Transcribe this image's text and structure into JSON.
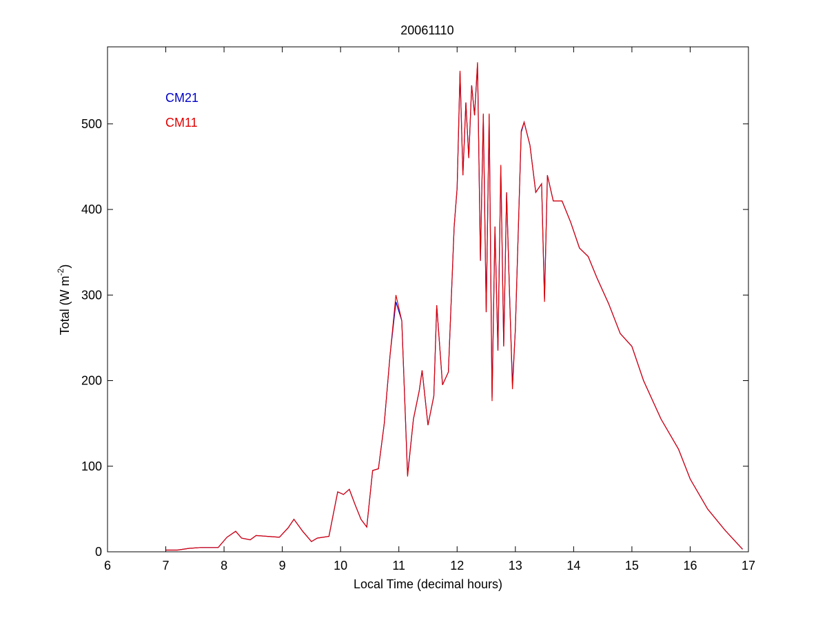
{
  "chart_data": {
    "type": "line",
    "title": "20061110",
    "xlabel": "Local Time (decimal hours)",
    "ylabel": {
      "main": "Total (W m",
      "sup": "-2",
      "close": ")"
    },
    "xlim": [
      6,
      17
    ],
    "ylim": [
      0,
      590
    ],
    "xticks": [
      6,
      7,
      8,
      9,
      10,
      11,
      12,
      13,
      14,
      15,
      16,
      17
    ],
    "yticks": [
      0,
      100,
      200,
      300,
      400,
      500
    ],
    "grid": false,
    "legend_placement": "top-left",
    "series": [
      {
        "name": "CM21",
        "color": "#0000c8",
        "points": [
          [
            7.0,
            2
          ],
          [
            7.2,
            2
          ],
          [
            7.4,
            4
          ],
          [
            7.6,
            5
          ],
          [
            7.9,
            5
          ],
          [
            8.05,
            17
          ],
          [
            8.2,
            24
          ],
          [
            8.3,
            16
          ],
          [
            8.45,
            14
          ],
          [
            8.55,
            19
          ],
          [
            8.75,
            18
          ],
          [
            8.95,
            17
          ],
          [
            9.1,
            28
          ],
          [
            9.2,
            38
          ],
          [
            9.35,
            24
          ],
          [
            9.5,
            12
          ],
          [
            9.6,
            16
          ],
          [
            9.8,
            18
          ],
          [
            9.95,
            70
          ],
          [
            10.05,
            67
          ],
          [
            10.15,
            73
          ],
          [
            10.25,
            55
          ],
          [
            10.35,
            38
          ],
          [
            10.45,
            29
          ],
          [
            10.55,
            95
          ],
          [
            10.65,
            97
          ],
          [
            10.75,
            150
          ],
          [
            10.85,
            230
          ],
          [
            10.95,
            292
          ],
          [
            11.05,
            270
          ],
          [
            11.15,
            90
          ],
          [
            11.25,
            155
          ],
          [
            11.35,
            188
          ],
          [
            11.4,
            212
          ],
          [
            11.5,
            148
          ],
          [
            11.6,
            182
          ],
          [
            11.65,
            288
          ],
          [
            11.75,
            195
          ],
          [
            11.85,
            210
          ],
          [
            11.95,
            380
          ],
          [
            12.0,
            425
          ],
          [
            12.05,
            560
          ],
          [
            12.1,
            440
          ],
          [
            12.15,
            525
          ],
          [
            12.2,
            460
          ],
          [
            12.25,
            545
          ],
          [
            12.3,
            510
          ],
          [
            12.35,
            570
          ],
          [
            12.4,
            340
          ],
          [
            12.45,
            510
          ],
          [
            12.5,
            280
          ],
          [
            12.55,
            510
          ],
          [
            12.6,
            180
          ],
          [
            12.65,
            380
          ],
          [
            12.7,
            235
          ],
          [
            12.75,
            450
          ],
          [
            12.8,
            240
          ],
          [
            12.85,
            420
          ],
          [
            12.9,
            300
          ],
          [
            12.95,
            195
          ],
          [
            13.0,
            260
          ],
          [
            13.1,
            490
          ],
          [
            13.15,
            502
          ],
          [
            13.25,
            475
          ],
          [
            13.35,
            420
          ],
          [
            13.45,
            430
          ],
          [
            13.5,
            295
          ],
          [
            13.55,
            440
          ],
          [
            13.65,
            410
          ],
          [
            13.8,
            410
          ],
          [
            13.95,
            385
          ],
          [
            14.1,
            355
          ],
          [
            14.25,
            345
          ],
          [
            14.4,
            320
          ],
          [
            14.6,
            290
          ],
          [
            14.8,
            255
          ],
          [
            15.0,
            240
          ],
          [
            15.2,
            200
          ],
          [
            15.5,
            155
          ],
          [
            15.8,
            120
          ],
          [
            16.0,
            85
          ],
          [
            16.3,
            50
          ],
          [
            16.6,
            25
          ],
          [
            16.9,
            3
          ]
        ]
      },
      {
        "name": "CM11",
        "color": "#e00000",
        "points": [
          [
            7.0,
            2
          ],
          [
            7.2,
            2
          ],
          [
            7.4,
            4
          ],
          [
            7.6,
            5
          ],
          [
            7.9,
            5
          ],
          [
            8.05,
            17
          ],
          [
            8.2,
            24
          ],
          [
            8.3,
            16
          ],
          [
            8.45,
            14
          ],
          [
            8.55,
            19
          ],
          [
            8.75,
            18
          ],
          [
            8.95,
            17
          ],
          [
            9.1,
            28
          ],
          [
            9.2,
            38
          ],
          [
            9.35,
            24
          ],
          [
            9.5,
            12
          ],
          [
            9.6,
            16
          ],
          [
            9.8,
            18
          ],
          [
            9.95,
            70
          ],
          [
            10.05,
            67
          ],
          [
            10.15,
            73
          ],
          [
            10.25,
            55
          ],
          [
            10.35,
            38
          ],
          [
            10.45,
            29
          ],
          [
            10.55,
            95
          ],
          [
            10.65,
            97
          ],
          [
            10.75,
            150
          ],
          [
            10.85,
            230
          ],
          [
            10.95,
            300
          ],
          [
            11.05,
            270
          ],
          [
            11.15,
            88
          ],
          [
            11.25,
            155
          ],
          [
            11.35,
            188
          ],
          [
            11.4,
            212
          ],
          [
            11.5,
            148
          ],
          [
            11.6,
            182
          ],
          [
            11.65,
            288
          ],
          [
            11.75,
            195
          ],
          [
            11.85,
            210
          ],
          [
            11.95,
            380
          ],
          [
            12.0,
            425
          ],
          [
            12.05,
            562
          ],
          [
            12.1,
            440
          ],
          [
            12.15,
            525
          ],
          [
            12.2,
            460
          ],
          [
            12.25,
            545
          ],
          [
            12.3,
            510
          ],
          [
            12.35,
            572
          ],
          [
            12.4,
            340
          ],
          [
            12.45,
            512
          ],
          [
            12.5,
            280
          ],
          [
            12.55,
            512
          ],
          [
            12.6,
            176
          ],
          [
            12.65,
            380
          ],
          [
            12.7,
            235
          ],
          [
            12.75,
            452
          ],
          [
            12.8,
            240
          ],
          [
            12.85,
            420
          ],
          [
            12.9,
            300
          ],
          [
            12.95,
            190
          ],
          [
            13.0,
            260
          ],
          [
            13.1,
            492
          ],
          [
            13.15,
            502
          ],
          [
            13.25,
            475
          ],
          [
            13.35,
            420
          ],
          [
            13.45,
            430
          ],
          [
            13.5,
            292
          ],
          [
            13.55,
            440
          ],
          [
            13.65,
            410
          ],
          [
            13.8,
            410
          ],
          [
            13.95,
            385
          ],
          [
            14.1,
            355
          ],
          [
            14.25,
            345
          ],
          [
            14.4,
            320
          ],
          [
            14.6,
            290
          ],
          [
            14.8,
            255
          ],
          [
            15.0,
            240
          ],
          [
            15.2,
            200
          ],
          [
            15.5,
            155
          ],
          [
            15.8,
            120
          ],
          [
            16.0,
            85
          ],
          [
            16.3,
            50
          ],
          [
            16.6,
            25
          ],
          [
            16.9,
            3
          ]
        ]
      }
    ]
  }
}
